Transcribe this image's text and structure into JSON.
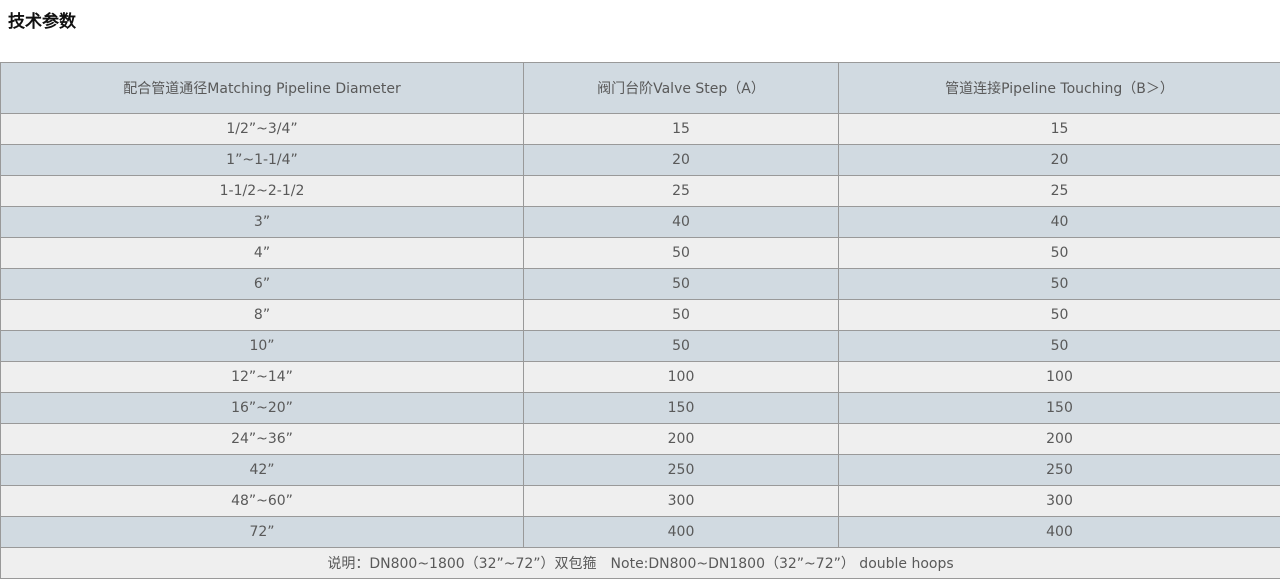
{
  "page": {
    "title": "技术参数"
  },
  "table": {
    "headers": [
      "配合管道通径Matching Pipeline Diameter",
      "阀门台阶Valve Step（A）",
      "管道连接Pipeline Touching（B＞）"
    ],
    "rows": [
      [
        "1/2”~3/4”",
        "15",
        "15"
      ],
      [
        "1”~1-1/4”",
        "20",
        "20"
      ],
      [
        "1-1/2~2-1/2",
        "25",
        "25"
      ],
      [
        "3”",
        "40",
        "40"
      ],
      [
        "4”",
        "50",
        "50"
      ],
      [
        "6”",
        "50",
        "50"
      ],
      [
        "8”",
        "50",
        "50"
      ],
      [
        "10”",
        "50",
        "50"
      ],
      [
        "12”~14”",
        "100",
        "100"
      ],
      [
        "16”~20”",
        "150",
        "150"
      ],
      [
        "24”~36”",
        "200",
        "200"
      ],
      [
        "42”",
        "250",
        "250"
      ],
      [
        "48”~60”",
        "300",
        "300"
      ],
      [
        "72”",
        "400",
        "400"
      ]
    ],
    "note": "说明：DN800~1800（32”~72”）双包箍　Note:DN800~DN1800（32”~72”） double hoops"
  },
  "colors": {
    "header_bg": "#d1dae1",
    "row_blue_bg": "#d1dae1",
    "row_light_bg": "#efefef",
    "note_bg": "#efefef",
    "border": "#999999",
    "text": "#595959",
    "title_text": "#111111"
  }
}
